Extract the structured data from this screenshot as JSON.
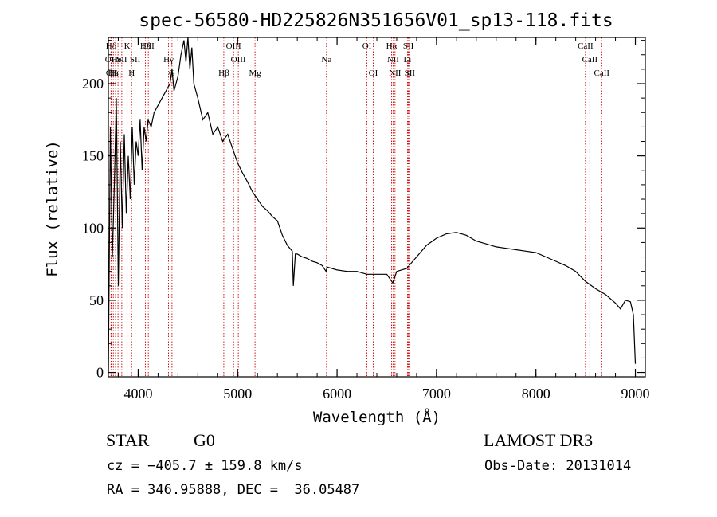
{
  "chart_data": {
    "type": "line",
    "title": "spec-56580-HD225826N351656V01_sp13-118.fits",
    "xlabel": "Wavelength (Å)",
    "ylabel": "Flux (relative)",
    "xlim": [
      3700,
      9100
    ],
    "ylim": [
      -3,
      232
    ],
    "xticks": [
      4000,
      5000,
      6000,
      7000,
      8000,
      9000
    ],
    "xtick_labels": [
      "4000",
      "5000",
      "6000",
      "7000",
      "8000",
      "9000"
    ],
    "yticks": [
      0,
      50,
      100,
      150,
      200
    ],
    "ytick_labels": [
      "0",
      "50",
      "100",
      "150",
      "200"
    ],
    "grid": false,
    "series": [
      {
        "name": "flux",
        "x": [
          3700,
          3720,
          3740,
          3760,
          3780,
          3800,
          3820,
          3840,
          3860,
          3880,
          3900,
          3920,
          3940,
          3960,
          3980,
          4000,
          4020,
          4040,
          4060,
          4080,
          4100,
          4130,
          4160,
          4200,
          4240,
          4280,
          4320,
          4340,
          4360,
          4400,
          4430,
          4460,
          4480,
          4500,
          4520,
          4540,
          4560,
          4600,
          4650,
          4700,
          4750,
          4800,
          4850,
          4900,
          4950,
          5000,
          5050,
          5100,
          5150,
          5200,
          5250,
          5300,
          5350,
          5400,
          5450,
          5500,
          5550,
          5560,
          5580,
          5600,
          5650,
          5700,
          5750,
          5800,
          5850,
          5890,
          5900,
          5950,
          6000,
          6100,
          6200,
          6300,
          6400,
          6500,
          6560,
          6580,
          6600,
          6700,
          6800,
          6900,
          7000,
          7100,
          7200,
          7300,
          7400,
          7500,
          7600,
          7700,
          7800,
          7900,
          8000,
          8100,
          8200,
          8300,
          8400,
          8500,
          8600,
          8700,
          8800,
          8850,
          8900,
          8950,
          8980,
          9000
        ],
        "values": [
          0,
          170,
          80,
          130,
          190,
          60,
          160,
          100,
          165,
          110,
          150,
          120,
          170,
          130,
          160,
          150,
          175,
          140,
          170,
          160,
          175,
          170,
          180,
          185,
          190,
          195,
          200,
          210,
          195,
          205,
          220,
          230,
          215,
          232,
          210,
          225,
          200,
          190,
          175,
          180,
          165,
          170,
          160,
          165,
          155,
          145,
          138,
          132,
          125,
          120,
          115,
          112,
          108,
          105,
          95,
          88,
          84,
          60,
          82,
          82,
          80,
          79,
          77,
          76,
          74,
          70,
          73,
          72,
          71,
          70,
          70,
          68,
          68,
          68,
          62,
          66,
          70,
          72,
          80,
          88,
          93,
          96,
          97,
          95,
          91,
          89,
          87,
          86,
          85,
          84,
          83,
          80,
          77,
          74,
          70,
          63,
          58,
          54,
          48,
          44,
          50,
          49,
          40,
          6
        ]
      }
    ],
    "lines": [
      {
        "label": "Hδ",
        "x": 3727,
        "row": 1
      },
      {
        "label": "OII",
        "x": 3727,
        "row": 2
      },
      {
        "label": "CII",
        "x": 3734,
        "row": 3
      },
      {
        "label": "Hε",
        "x": 3750,
        "row": 3
      },
      {
        "label": "Hη",
        "x": 3772,
        "row": 3
      },
      {
        "label": "HeI",
        "x": 3797,
        "row": 2
      },
      {
        "label": "SII",
        "x": 3835,
        "row": 2
      },
      {
        "label": "K",
        "x": 3889,
        "row": 1
      },
      {
        "label": "H",
        "x": 3934,
        "row": 3
      },
      {
        "label": "SII",
        "x": 3969,
        "row": 2
      },
      {
        "label": "Hδ",
        "x": 4072,
        "row": 1
      },
      {
        "label": "OII",
        "x": 4102,
        "row": 1
      },
      {
        "label": "Hγ",
        "x": 4305,
        "row": 2
      },
      {
        "label": "G",
        "x": 4340,
        "row": 3
      },
      {
        "label": "Hβ",
        "x": 4861,
        "row": 3
      },
      {
        "label": "OIII",
        "x": 4959,
        "row": 1
      },
      {
        "label": "OIII",
        "x": 5007,
        "row": 2
      },
      {
        "label": "Mg",
        "x": 5175,
        "row": 3
      },
      {
        "label": "Na",
        "x": 5894,
        "row": 2
      },
      {
        "label": "OI",
        "x": 6300,
        "row": 1
      },
      {
        "label": "OI",
        "x": 6364,
        "row": 3
      },
      {
        "label": "Hα",
        "x": 6548,
        "row": 1
      },
      {
        "label": "NII",
        "x": 6563,
        "row": 2
      },
      {
        "label": "NII",
        "x": 6583,
        "row": 3
      },
      {
        "label": "SII",
        "x": 6717,
        "row": 1
      },
      {
        "label": "Li",
        "x": 6708,
        "row": 2
      },
      {
        "label": "SII",
        "x": 6731,
        "row": 3
      },
      {
        "label": "CaII",
        "x": 8498,
        "row": 1
      },
      {
        "label": "CaII",
        "x": 8542,
        "row": 2
      },
      {
        "label": "CaII",
        "x": 8662,
        "row": 3
      }
    ]
  },
  "info": {
    "class": "STAR",
    "subclass": "G0",
    "survey": "LAMOST DR3",
    "cz": "cz = −405.7 ± 159.8 km/s",
    "obs_date": "Obs-Date: 20131014",
    "radec": "RA = 346.95888, DEC =  36.05487"
  },
  "colors": {
    "line_marker": "#cc0000",
    "spectrum": "#000000",
    "axis": "#000000"
  }
}
